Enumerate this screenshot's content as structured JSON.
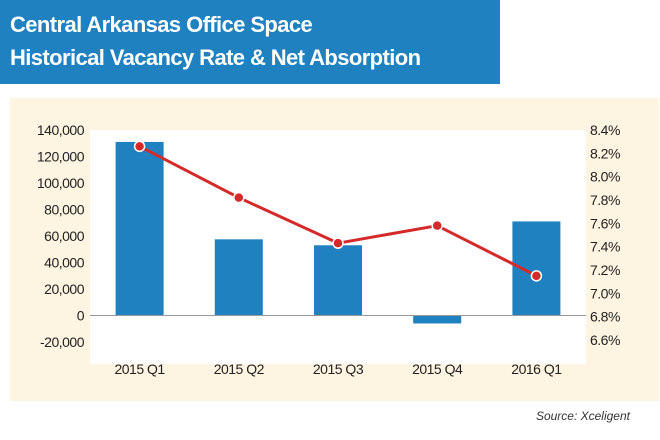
{
  "header": {
    "title_line1": "Central Arkansas Office Space",
    "title_line2": "Historical Vacancy Rate & Net Absorption"
  },
  "footer": {
    "source": "Source: Xceligent"
  },
  "colors": {
    "title_band": "#1f81bf",
    "bar": "#1f81bf",
    "line": "#d42a2a",
    "panel_background": "#fdf5e1",
    "plot_background": "#ffffff"
  },
  "chart_data": {
    "type": "bar",
    "categories": [
      "2015 Q1",
      "2015 Q2",
      "2015 Q3",
      "2015 Q4",
      "2016 Q1"
    ],
    "series": [
      {
        "type": "bar",
        "axis": "left",
        "values": [
          131000,
          57500,
          53000,
          -6000,
          71000
        ]
      },
      {
        "type": "line",
        "axis": "right",
        "values": [
          8.26,
          7.82,
          7.43,
          7.58,
          7.15
        ]
      }
    ],
    "y_left": {
      "ylim": [
        -20000,
        140000
      ],
      "ticks": [
        140000,
        120000,
        100000,
        80000,
        60000,
        40000,
        20000,
        0,
        -20000
      ],
      "tick_labels": [
        "140,000",
        "120,000",
        "100,000",
        "80,000",
        "60,000",
        "40,000",
        "20,000",
        "0",
        "-20,000"
      ]
    },
    "y_right": {
      "ylim": [
        6.6,
        8.4
      ],
      "ticks": [
        8.4,
        8.2,
        8.0,
        7.8,
        7.6,
        7.4,
        7.2,
        7.0,
        6.8,
        6.6
      ],
      "tick_labels": [
        "8.4%",
        "8.2%",
        "8.0%",
        "7.8%",
        "7.6%",
        "7.4%",
        "7.2%",
        "7.0%",
        "6.8%",
        "6.6%"
      ]
    },
    "grid": false,
    "legend": "none"
  }
}
